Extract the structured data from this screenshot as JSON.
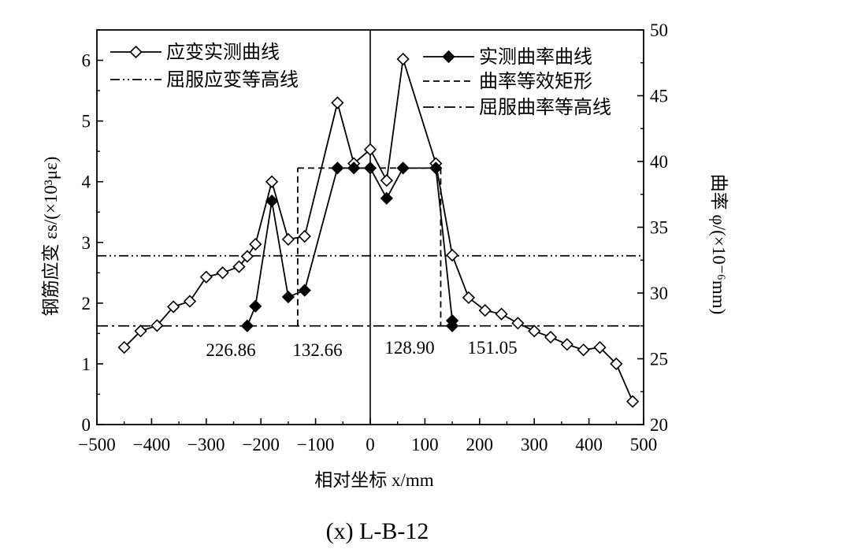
{
  "caption": "(x) L-B-12",
  "chart_data": {
    "type": "line",
    "xlabel": "相对坐标 x/mm",
    "ylabel_left": "钢筋应变 εs/(×10³με)",
    "ylabel_right": "曲率 φ/(×10⁻⁶mm)",
    "xlim": [
      -500,
      500
    ],
    "ylim_left": [
      0,
      6.5
    ],
    "ylim_right": [
      20,
      50
    ],
    "x_ticks": [
      -500,
      -400,
      -300,
      -200,
      -100,
      0,
      100,
      200,
      300,
      400,
      500
    ],
    "y_left_ticks": [
      0,
      1,
      2,
      3,
      4,
      5,
      6
    ],
    "y_right_ticks": [
      20,
      25,
      30,
      35,
      40,
      45,
      50
    ],
    "grid": false,
    "legend_left": [
      {
        "label": "应变实测曲线",
        "style": "solid-open-diamond"
      },
      {
        "label": "屈服应变等高线",
        "style": "dash-dot-dot"
      }
    ],
    "legend_right": [
      {
        "label": "实测曲率曲线",
        "style": "solid-filled-diamond"
      },
      {
        "label": "曲率等效矩形",
        "style": "dashed"
      },
      {
        "label": "屈服曲率等高线",
        "style": "dash-dot"
      }
    ],
    "series": [
      {
        "name": "应变实测曲线",
        "axis": "left",
        "x": [
          -450,
          -420,
          -390,
          -360,
          -330,
          -300,
          -270,
          -240,
          -225,
          -210,
          -180,
          -150,
          -120,
          -60,
          -30,
          0,
          30,
          60,
          120,
          150,
          180,
          210,
          240,
          270,
          300,
          330,
          360,
          390,
          420,
          450,
          480
        ],
        "y": [
          1.27,
          1.54,
          1.63,
          1.94,
          2.03,
          2.43,
          2.5,
          2.6,
          2.77,
          2.97,
          4.0,
          3.05,
          3.1,
          5.3,
          4.3,
          4.53,
          4.02,
          6.02,
          4.3,
          2.79,
          2.09,
          1.88,
          1.82,
          1.67,
          1.54,
          1.44,
          1.32,
          1.23,
          1.27,
          1.0,
          0.38
        ]
      },
      {
        "name": "实测曲率曲线",
        "axis": "right",
        "x": [
          -225,
          -210,
          -180,
          -150,
          -120,
          -60,
          -30,
          0,
          30,
          60,
          120,
          150,
          150
        ],
        "y": [
          27.5,
          29,
          37,
          29.7,
          30.2,
          39.5,
          39.5,
          39.5,
          37.2,
          39.5,
          39.5,
          27.9,
          27.5
        ]
      }
    ],
    "yield_strain_level": 2.78,
    "yield_curvature_level": 27.5,
    "equivalent_rectangle": {
      "x_start": -132.66,
      "x_end": 128.9,
      "height": 39.5
    },
    "annotations": [
      "226.86",
      "132.66",
      "128.90",
      "151.05"
    ]
  }
}
